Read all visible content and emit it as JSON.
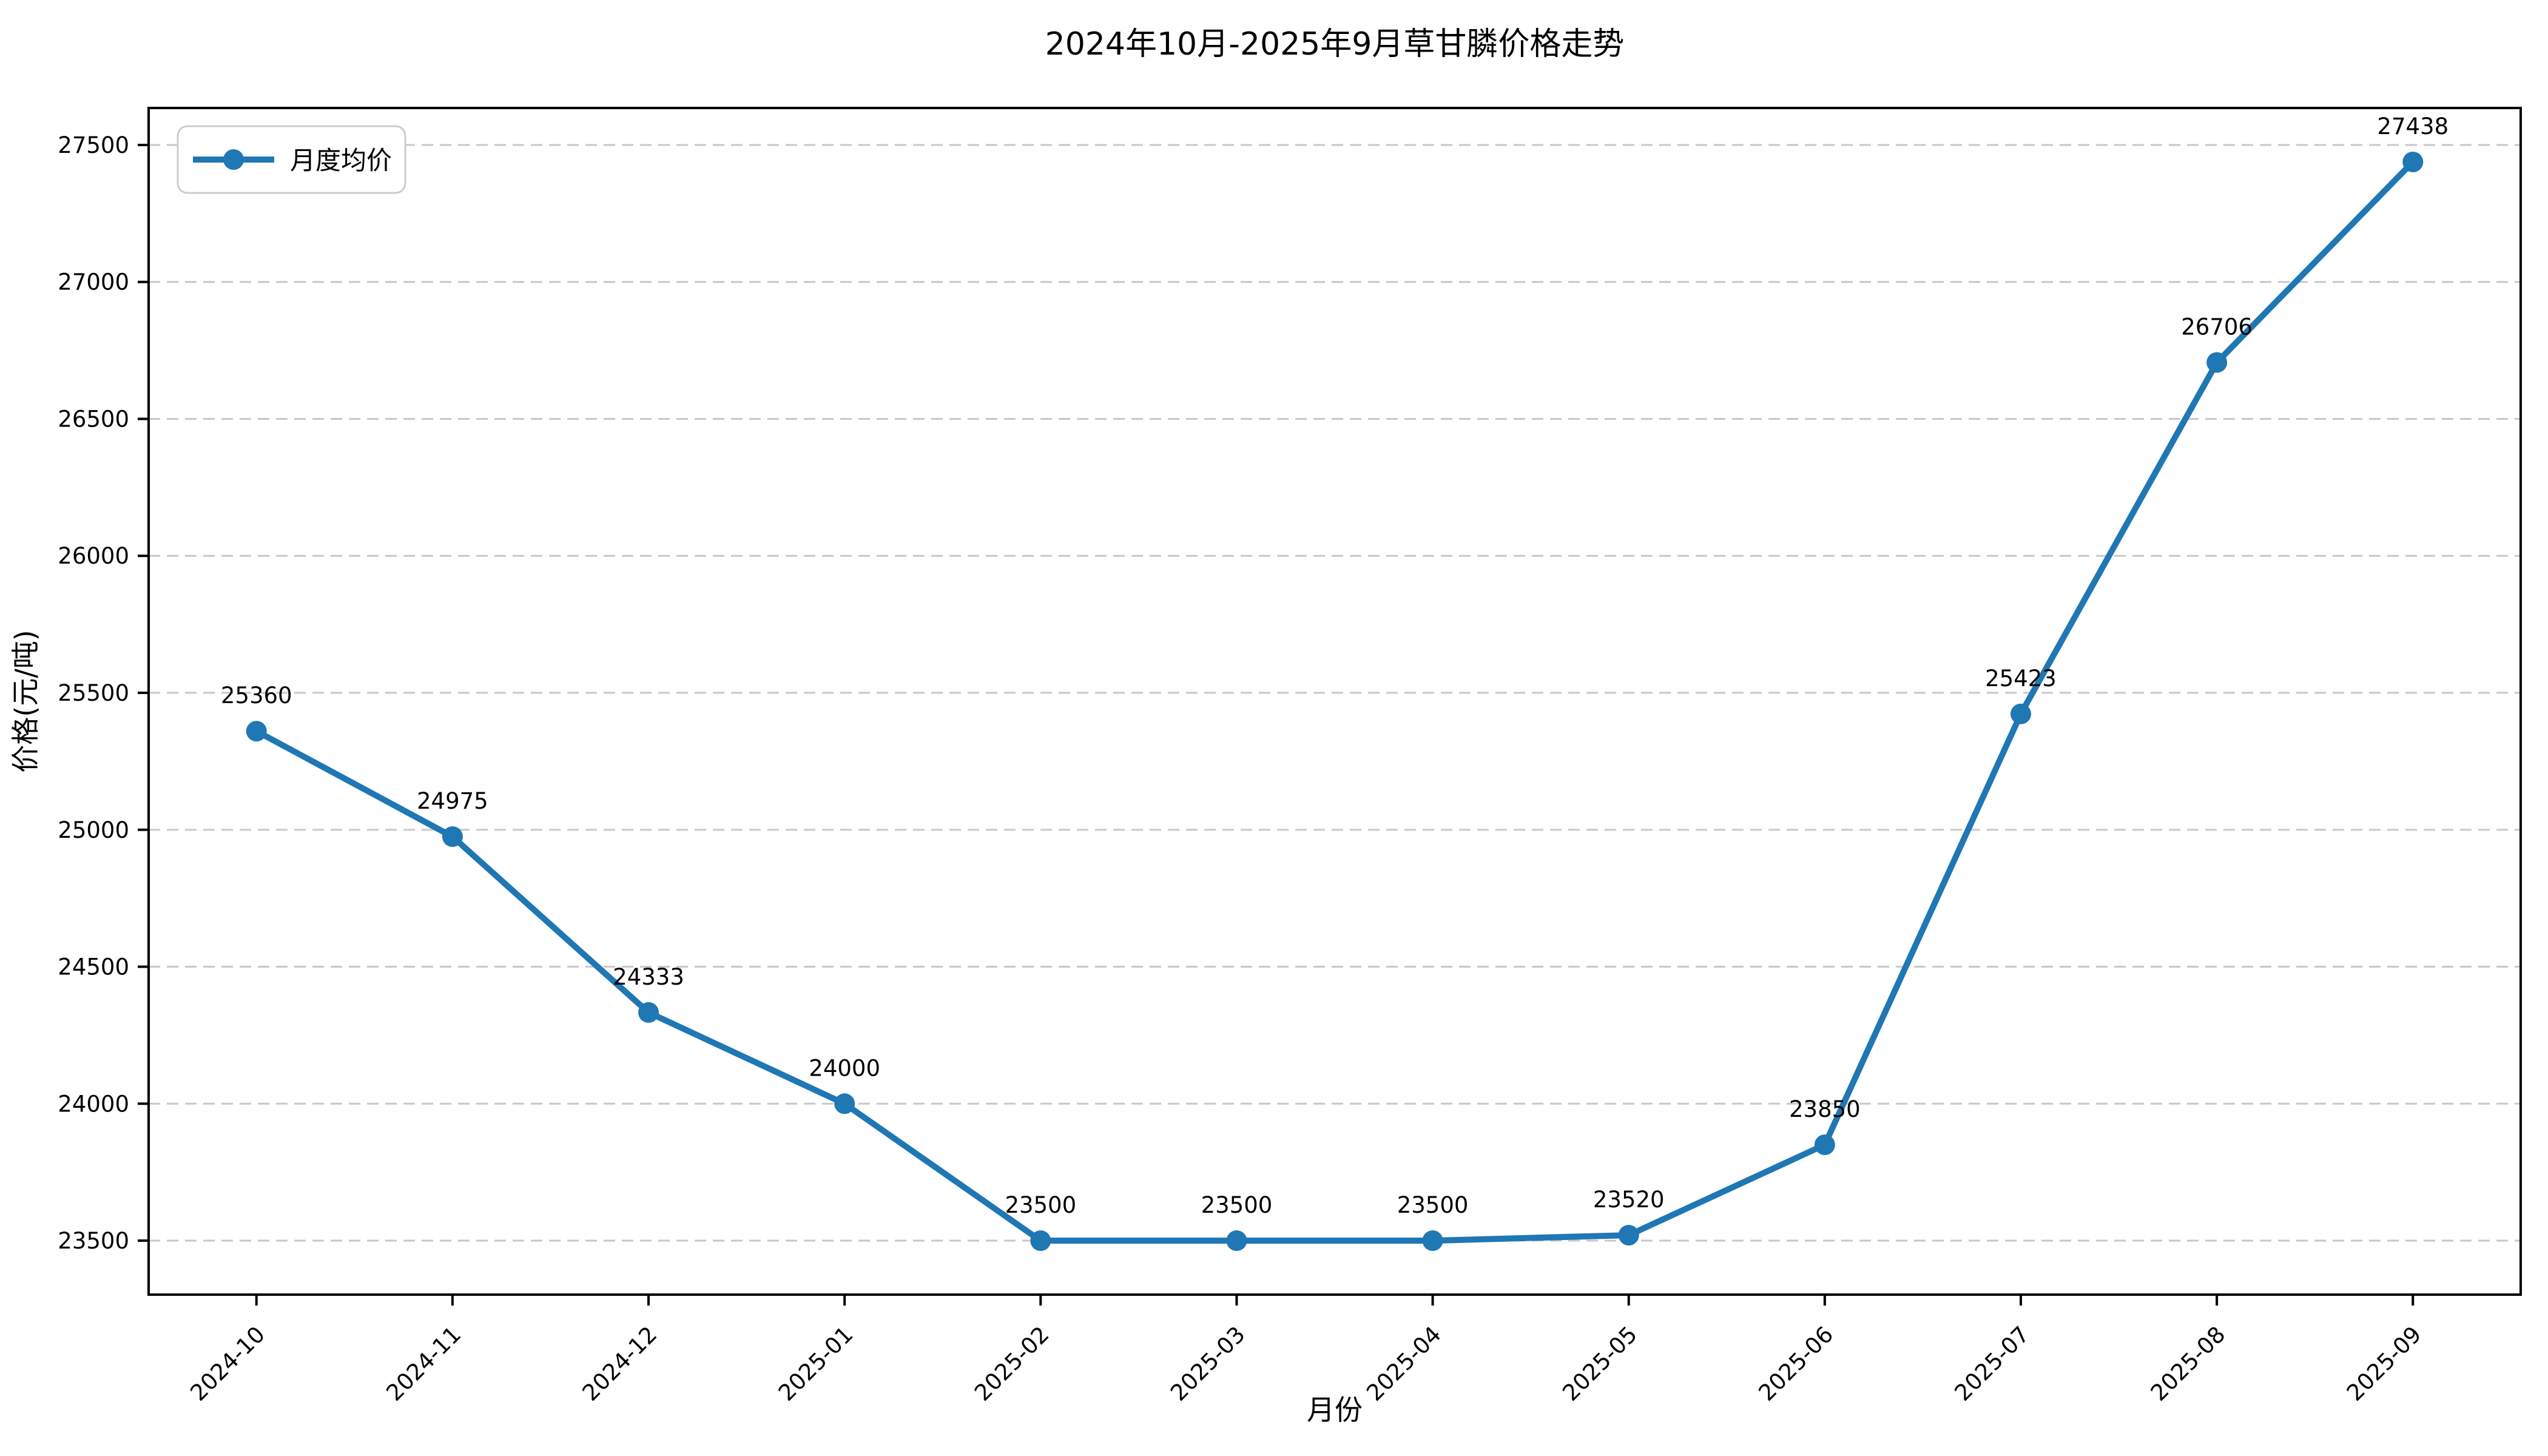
{
  "chart_data": {
    "type": "line",
    "title": "2024年10月-2025年9月草甘膦价格走势",
    "xlabel": "月份",
    "ylabel": "价格(元/吨)",
    "categories": [
      "2024-10",
      "2024-11",
      "2024-12",
      "2025-01",
      "2025-02",
      "2025-03",
      "2025-04",
      "2025-05",
      "2025-06",
      "2025-07",
      "2025-08",
      "2025-09"
    ],
    "series": [
      {
        "name": "月度均价",
        "values": [
          25360,
          24975,
          24333,
          24000,
          23500,
          23500,
          23500,
          23520,
          23850,
          25423,
          26706,
          27438
        ],
        "color": "#1f77b4"
      }
    ],
    "yticks": [
      23500,
      24000,
      24500,
      25000,
      25500,
      26000,
      26500,
      27000,
      27500
    ],
    "ylim": [
      23303,
      27635
    ],
    "xlim": [
      -0.55,
      11.55
    ],
    "grid": "horizontal-dashed",
    "grid_color": "#c8c8c8",
    "legend_position": "upper-left",
    "point_labels_shown": true
  }
}
